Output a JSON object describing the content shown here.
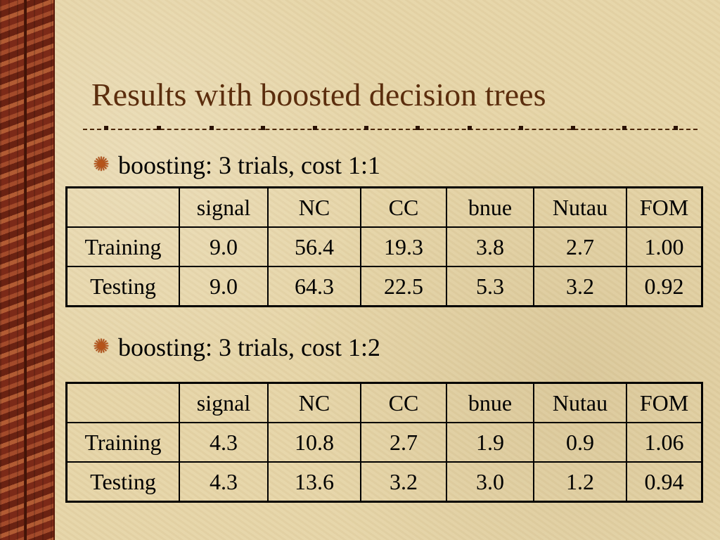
{
  "slide": {
    "title": "Results with boosted decision trees"
  },
  "sections": [
    {
      "bullet": "boosting: 3 trials, cost 1:1",
      "table": {
        "headers": [
          "",
          "signal",
          "NC",
          "CC",
          "bnue",
          "Nutau",
          "FOM"
        ],
        "rows": [
          [
            "Training",
            "9.0",
            "56.4",
            "19.3",
            "3.8",
            "2.7",
            "1.00"
          ],
          [
            "Testing",
            "9.0",
            "64.3",
            "22.5",
            "5.3",
            "3.2",
            "0.92"
          ]
        ]
      }
    },
    {
      "bullet": "boosting: 3 trials, cost 1:2",
      "table": {
        "headers": [
          "",
          "signal",
          "NC",
          "CC",
          "bnue",
          "Nutau",
          "FOM"
        ],
        "rows": [
          [
            "Training",
            "4.3",
            "10.8",
            "2.7",
            "1.9",
            "0.9",
            "1.06"
          ],
          [
            "Testing",
            "4.3",
            "13.6",
            "3.2",
            "3.0",
            "1.2",
            "0.94"
          ]
        ]
      }
    }
  ],
  "icons": {
    "bullet": "starburst-bullet-icon"
  },
  "colors": {
    "title": "#5b2d0d",
    "background": "#e6d5a8",
    "bullet_icon": "#b5541a"
  }
}
